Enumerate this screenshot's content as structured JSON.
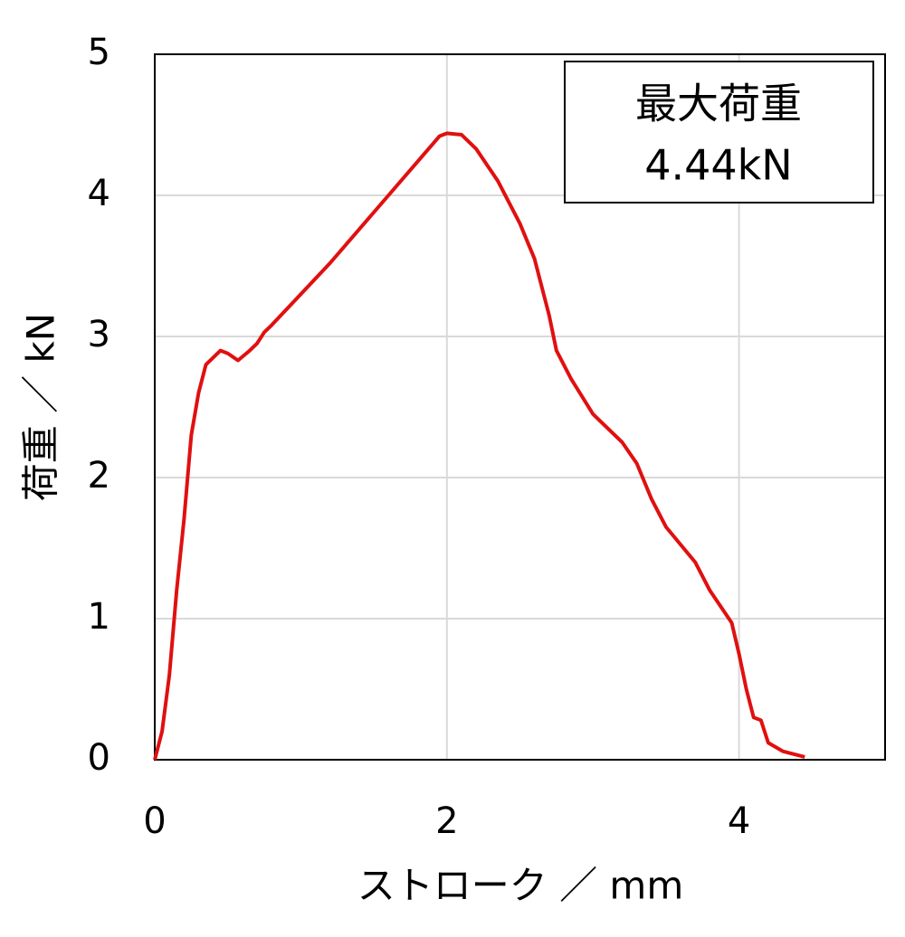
{
  "chart_data": {
    "type": "line",
    "x_label": "ストローク ／ mm",
    "y_label": "荷重 ／ kN",
    "annotation": [
      "最大荷重",
      "4.44kN"
    ],
    "xlim": [
      0,
      5
    ],
    "xticks": [
      0,
      2,
      4
    ],
    "ylim": [
      0,
      5
    ],
    "yticks": [
      0,
      1,
      2,
      3,
      4,
      5
    ],
    "grid": true,
    "series": [
      {
        "color": "#e01010",
        "x": [
          0,
          0.05,
          0.1,
          0.15,
          0.2,
          0.25,
          0.3,
          0.35,
          0.45,
          0.5,
          0.57,
          0.65,
          0.7,
          0.75,
          0.8,
          1.0,
          1.2,
          1.4,
          1.6,
          1.8,
          1.95,
          2.0,
          2.1,
          2.2,
          2.35,
          2.5,
          2.6,
          2.7,
          2.75,
          2.8,
          2.85,
          3.0,
          3.2,
          3.3,
          3.4,
          3.5,
          3.7,
          3.8,
          3.95,
          4.0,
          4.05,
          4.1,
          4.15,
          4.2,
          4.3,
          4.45
        ],
        "values": [
          0,
          0.2,
          0.6,
          1.2,
          1.7,
          2.3,
          2.6,
          2.8,
          2.9,
          2.88,
          2.83,
          2.9,
          2.95,
          3.03,
          3.08,
          3.3,
          3.52,
          3.76,
          4.0,
          4.24,
          4.42,
          4.44,
          4.43,
          4.33,
          4.1,
          3.8,
          3.55,
          3.15,
          2.9,
          2.8,
          2.7,
          2.45,
          2.25,
          2.1,
          1.85,
          1.65,
          1.4,
          1.2,
          0.97,
          0.75,
          0.5,
          0.3,
          0.28,
          0.12,
          0.06,
          0.02
        ]
      }
    ]
  }
}
